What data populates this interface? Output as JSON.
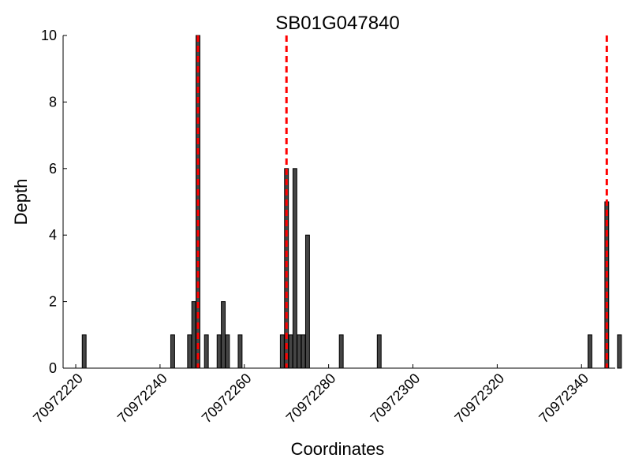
{
  "chart_data": {
    "type": "bar",
    "title": "SB01G047840",
    "xlabel": "Coordinates",
    "ylabel": "Depth",
    "xlim": [
      70972217,
      70972348
    ],
    "ylim": [
      0,
      10
    ],
    "xticks": [
      70972220,
      70972240,
      70972260,
      70972280,
      70972300,
      70972320,
      70972340
    ],
    "yticks": [
      0,
      2,
      4,
      6,
      8,
      10
    ],
    "bar_color": "#454545",
    "marker_color": "#ff0000",
    "grid": false,
    "bars": [
      {
        "x": 70972222,
        "depth": 1
      },
      {
        "x": 70972243,
        "depth": 1
      },
      {
        "x": 70972247,
        "depth": 1
      },
      {
        "x": 70972248,
        "depth": 2
      },
      {
        "x": 70972249,
        "depth": 10
      },
      {
        "x": 70972251,
        "depth": 1
      },
      {
        "x": 70972254,
        "depth": 1
      },
      {
        "x": 70972255,
        "depth": 2
      },
      {
        "x": 70972256,
        "depth": 1
      },
      {
        "x": 70972259,
        "depth": 1
      },
      {
        "x": 70972269,
        "depth": 1
      },
      {
        "x": 70972270,
        "depth": 6
      },
      {
        "x": 70972271,
        "depth": 1
      },
      {
        "x": 70972272,
        "depth": 6
      },
      {
        "x": 70972273,
        "depth": 1
      },
      {
        "x": 70972274,
        "depth": 1
      },
      {
        "x": 70972275,
        "depth": 4
      },
      {
        "x": 70972283,
        "depth": 1
      },
      {
        "x": 70972292,
        "depth": 1
      },
      {
        "x": 70972342,
        "depth": 1
      },
      {
        "x": 70972346,
        "depth": 5
      },
      {
        "x": 70972349,
        "depth": 1
      }
    ],
    "markers": [
      70972249,
      70972270,
      70972346
    ]
  }
}
